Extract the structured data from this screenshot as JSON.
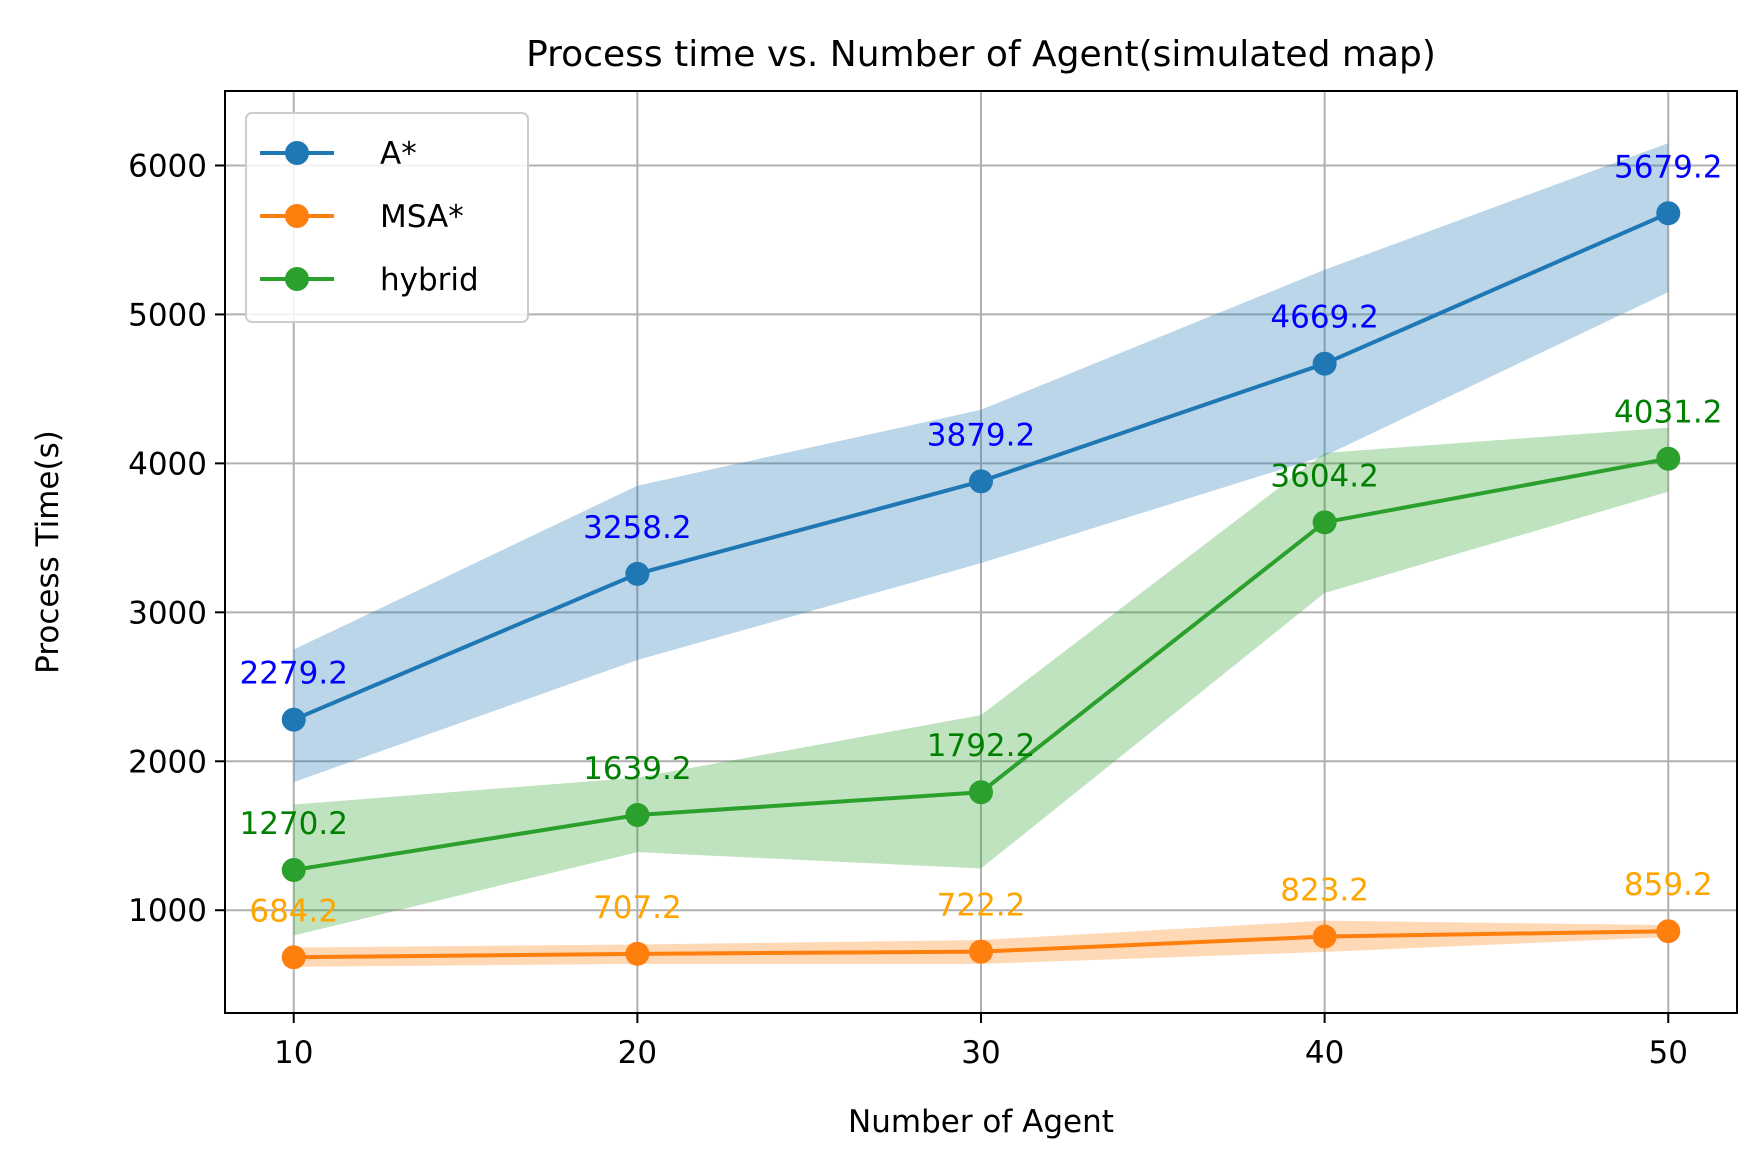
{
  "chart_data": {
    "type": "line",
    "title": "Process time vs. Number of Agent(simulated map)",
    "xlabel": "Number of  Agent",
    "ylabel": "Process Time(s)",
    "x": [
      10,
      20,
      30,
      40,
      50
    ],
    "xlim": [
      8,
      52
    ],
    "ylim": [
      310,
      6500
    ],
    "xticks": [
      10,
      20,
      30,
      40,
      50
    ],
    "yticks": [
      1000,
      2000,
      3000,
      4000,
      5000,
      6000
    ],
    "grid": true,
    "legend_position": "upper-left",
    "series": [
      {
        "name": "A*",
        "color": "#1f77b4",
        "label_color": "#0000ff",
        "values": [
          2279.2,
          3258.2,
          3879.2,
          4669.2,
          5679.2
        ],
        "band_low": [
          1860,
          2680,
          3330,
          4050,
          5150
        ],
        "band_high": [
          2750,
          3850,
          4360,
          5300,
          6150
        ],
        "data_labels": [
          "2279.2",
          "3258.2",
          "3879.2",
          "4669.2",
          "5679.2"
        ]
      },
      {
        "name": "MSA*",
        "color": "#ff7f0e",
        "label_color": "#ffa500",
        "values": [
          684.2,
          707.2,
          722.2,
          823.2,
          859.2
        ],
        "band_low": [
          620,
          640,
          640,
          720,
          820
        ],
        "band_high": [
          750,
          770,
          800,
          930,
          900
        ],
        "data_labels": [
          "684.2",
          "707.2",
          "722.2",
          "823.2",
          "859.2"
        ]
      },
      {
        "name": "hybrid",
        "color": "#2ca02c",
        "label_color": "#008000",
        "values": [
          1270.2,
          1639.2,
          1792.2,
          3604.2,
          4031.2
        ],
        "band_low": [
          830,
          1390,
          1280,
          3130,
          3810
        ],
        "band_high": [
          1710,
          1890,
          2310,
          4070,
          4240
        ],
        "data_labels": [
          "1270.2",
          "1639.2",
          "1792.2",
          "3604.2",
          "4031.2"
        ]
      }
    ]
  }
}
